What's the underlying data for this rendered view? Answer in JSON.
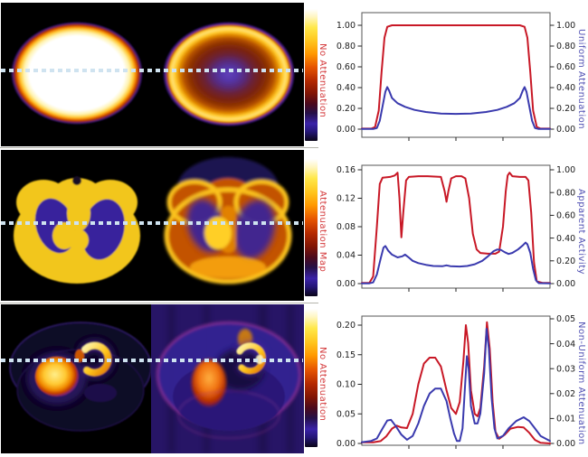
{
  "figure": {
    "description": "Attenuation effects in emission tomography: three phantom/patient slices (true vs attenuated) with line profiles along the dashed cyan line",
    "profile_line_color": "#cfe3f0",
    "colorbar_stops": [
      "#ffffff 0%",
      "#fff6c0 6%",
      "#ffe84a 14%",
      "#ffc61e 24%",
      "#ff9800 34%",
      "#e65500 44%",
      "#b52a00 54%",
      "#801505 64%",
      "#4a0a1e 72%",
      "#251047 79%",
      "#3a22a8 87%",
      "#241677 93%",
      "#0a0518 100%"
    ]
  },
  "chart_data": [
    {
      "type": "line",
      "title": "",
      "xlabel": "",
      "ylabel_left": "No Attenuation",
      "ylabel_right": "Uniform Attenuation",
      "ylabel_left_color": "#d43a3c",
      "ylabel_right_color": "#5252b4",
      "ylim_left": [
        0.0,
        1.0
      ],
      "ylim_right": [
        0.0,
        1.0
      ],
      "yticks_left": [
        "0.00",
        "0.20",
        "0.40",
        "0.60",
        "0.80",
        "1.00"
      ],
      "yticks_right": [
        "0.00",
        "0.20",
        "0.40",
        "0.60",
        "0.80",
        "1.00"
      ],
      "grid": false,
      "legend": "none",
      "series": [
        {
          "name": "No Attenuation",
          "axis": "left",
          "color": "#c81826",
          "points": [
            [
              0,
              0.005
            ],
            [
              0.05,
              0.005
            ],
            [
              0.07,
              0.02
            ],
            [
              0.09,
              0.18
            ],
            [
              0.105,
              0.55
            ],
            [
              0.12,
              0.88
            ],
            [
              0.135,
              0.985
            ],
            [
              0.16,
              1.0
            ],
            [
              0.3,
              1.0
            ],
            [
              0.5,
              1.0
            ],
            [
              0.7,
              1.0
            ],
            [
              0.84,
              1.0
            ],
            [
              0.865,
              0.985
            ],
            [
              0.88,
              0.88
            ],
            [
              0.895,
              0.55
            ],
            [
              0.91,
              0.18
            ],
            [
              0.93,
              0.02
            ],
            [
              0.95,
              0.005
            ],
            [
              1,
              0.005
            ]
          ]
        },
        {
          "name": "Uniform Attenuation",
          "axis": "right",
          "color": "#3a3aae",
          "points": [
            [
              0,
              0.002
            ],
            [
              0.06,
              0.002
            ],
            [
              0.08,
              0.01
            ],
            [
              0.095,
              0.08
            ],
            [
              0.11,
              0.22
            ],
            [
              0.125,
              0.36
            ],
            [
              0.135,
              0.405
            ],
            [
              0.145,
              0.37
            ],
            [
              0.16,
              0.3
            ],
            [
              0.19,
              0.25
            ],
            [
              0.23,
              0.215
            ],
            [
              0.28,
              0.185
            ],
            [
              0.34,
              0.165
            ],
            [
              0.42,
              0.15
            ],
            [
              0.5,
              0.147
            ],
            [
              0.58,
              0.15
            ],
            [
              0.66,
              0.165
            ],
            [
              0.72,
              0.185
            ],
            [
              0.77,
              0.215
            ],
            [
              0.81,
              0.25
            ],
            [
              0.84,
              0.3
            ],
            [
              0.855,
              0.37
            ],
            [
              0.865,
              0.405
            ],
            [
              0.875,
              0.36
            ],
            [
              0.89,
              0.22
            ],
            [
              0.905,
              0.08
            ],
            [
              0.92,
              0.01
            ],
            [
              0.94,
              0.002
            ],
            [
              1,
              0.002
            ]
          ]
        }
      ]
    },
    {
      "type": "line",
      "title": "",
      "xlabel": "",
      "ylabel_left": "Attenuation Map",
      "ylabel_right": "Apparent Activity",
      "ylabel_left_color": "#d43a3c",
      "ylabel_right_color": "#5252b4",
      "ylim_left": [
        0.0,
        0.16
      ],
      "ylim_right": [
        0.0,
        1.0
      ],
      "yticks_left": [
        "0.00",
        "0.04",
        "0.08",
        "0.12",
        "0.16"
      ],
      "yticks_right": [
        "0.00",
        "0.20",
        "0.40",
        "0.60",
        "0.80",
        "1.00"
      ],
      "grid": false,
      "legend": "none",
      "series": [
        {
          "name": "Attenuation Map",
          "axis": "left",
          "color": "#c81826",
          "points": [
            [
              0,
              0.001
            ],
            [
              0.04,
              0.001
            ],
            [
              0.06,
              0.01
            ],
            [
              0.08,
              0.08
            ],
            [
              0.095,
              0.14
            ],
            [
              0.11,
              0.149
            ],
            [
              0.15,
              0.15
            ],
            [
              0.175,
              0.152
            ],
            [
              0.19,
              0.156
            ],
            [
              0.2,
              0.12
            ],
            [
              0.21,
              0.065
            ],
            [
              0.22,
              0.1
            ],
            [
              0.235,
              0.145
            ],
            [
              0.25,
              0.15
            ],
            [
              0.3,
              0.151
            ],
            [
              0.35,
              0.151
            ],
            [
              0.42,
              0.15
            ],
            [
              0.44,
              0.13
            ],
            [
              0.45,
              0.115
            ],
            [
              0.46,
              0.13
            ],
            [
              0.475,
              0.148
            ],
            [
              0.5,
              0.151
            ],
            [
              0.53,
              0.151
            ],
            [
              0.55,
              0.148
            ],
            [
              0.57,
              0.12
            ],
            [
              0.59,
              0.07
            ],
            [
              0.61,
              0.048
            ],
            [
              0.63,
              0.043
            ],
            [
              0.67,
              0.042
            ],
            [
              0.71,
              0.042
            ],
            [
              0.73,
              0.045
            ],
            [
              0.75,
              0.08
            ],
            [
              0.765,
              0.13
            ],
            [
              0.775,
              0.152
            ],
            [
              0.785,
              0.156
            ],
            [
              0.8,
              0.151
            ],
            [
              0.84,
              0.15
            ],
            [
              0.87,
              0.15
            ],
            [
              0.885,
              0.145
            ],
            [
              0.9,
              0.1
            ],
            [
              0.915,
              0.03
            ],
            [
              0.93,
              0.003
            ],
            [
              0.96,
              0.001
            ],
            [
              1,
              0.001
            ]
          ]
        },
        {
          "name": "Apparent Activity",
          "axis": "right",
          "color": "#3a3aae",
          "points": [
            [
              0,
              0.002
            ],
            [
              0.04,
              0.002
            ],
            [
              0.06,
              0.01
            ],
            [
              0.08,
              0.08
            ],
            [
              0.1,
              0.22
            ],
            [
              0.115,
              0.315
            ],
            [
              0.125,
              0.33
            ],
            [
              0.14,
              0.29
            ],
            [
              0.16,
              0.255
            ],
            [
              0.19,
              0.23
            ],
            [
              0.215,
              0.24
            ],
            [
              0.23,
              0.255
            ],
            [
              0.245,
              0.235
            ],
            [
              0.27,
              0.2
            ],
            [
              0.3,
              0.18
            ],
            [
              0.34,
              0.165
            ],
            [
              0.38,
              0.155
            ],
            [
              0.43,
              0.153
            ],
            [
              0.45,
              0.16
            ],
            [
              0.47,
              0.153
            ],
            [
              0.52,
              0.15
            ],
            [
              0.56,
              0.155
            ],
            [
              0.6,
              0.17
            ],
            [
              0.64,
              0.2
            ],
            [
              0.67,
              0.24
            ],
            [
              0.7,
              0.285
            ],
            [
              0.72,
              0.3
            ],
            [
              0.74,
              0.295
            ],
            [
              0.76,
              0.275
            ],
            [
              0.78,
              0.26
            ],
            [
              0.8,
              0.27
            ],
            [
              0.83,
              0.3
            ],
            [
              0.855,
              0.335
            ],
            [
              0.87,
              0.36
            ],
            [
              0.88,
              0.345
            ],
            [
              0.895,
              0.27
            ],
            [
              0.91,
              0.13
            ],
            [
              0.925,
              0.03
            ],
            [
              0.94,
              0.004
            ],
            [
              1,
              0.002
            ]
          ]
        }
      ]
    },
    {
      "type": "line",
      "title": "",
      "xlabel": "",
      "ylabel_left": "No Attenuation",
      "ylabel_right": "Non-Uniform Attenuation",
      "ylabel_left_color": "#d43a3c",
      "ylabel_right_color": "#5252b4",
      "ylim_left": [
        0.0,
        0.2
      ],
      "ylim_right": [
        0.0,
        0.05
      ],
      "yticks_left": [
        "0.00",
        "0.05",
        "0.10",
        "0.15",
        "0.20"
      ],
      "yticks_right": [
        "0.00",
        "0.01",
        "0.02",
        "0.03",
        "0.04",
        "0.05"
      ],
      "grid": false,
      "legend": "none",
      "series": [
        {
          "name": "No Attenuation",
          "axis": "left",
          "color": "#c81826",
          "points": [
            [
              0,
              0.002
            ],
            [
              0.06,
              0.002
            ],
            [
              0.1,
              0.004
            ],
            [
              0.13,
              0.012
            ],
            [
              0.16,
              0.025
            ],
            [
              0.185,
              0.03
            ],
            [
              0.21,
              0.027
            ],
            [
              0.24,
              0.026
            ],
            [
              0.27,
              0.05
            ],
            [
              0.3,
              0.1
            ],
            [
              0.33,
              0.135
            ],
            [
              0.36,
              0.145
            ],
            [
              0.39,
              0.145
            ],
            [
              0.42,
              0.13
            ],
            [
              0.45,
              0.09
            ],
            [
              0.475,
              0.06
            ],
            [
              0.5,
              0.05
            ],
            [
              0.52,
              0.07
            ],
            [
              0.54,
              0.14
            ],
            [
              0.553,
              0.2
            ],
            [
              0.565,
              0.17
            ],
            [
              0.58,
              0.09
            ],
            [
              0.6,
              0.05
            ],
            [
              0.615,
              0.046
            ],
            [
              0.63,
              0.06
            ],
            [
              0.65,
              0.13
            ],
            [
              0.665,
              0.205
            ],
            [
              0.68,
              0.16
            ],
            [
              0.695,
              0.07
            ],
            [
              0.71,
              0.02
            ],
            [
              0.73,
              0.008
            ],
            [
              0.76,
              0.015
            ],
            [
              0.79,
              0.025
            ],
            [
              0.83,
              0.028
            ],
            [
              0.86,
              0.027
            ],
            [
              0.89,
              0.018
            ],
            [
              0.92,
              0.006
            ],
            [
              0.95,
              0.001
            ],
            [
              1,
              0.0
            ]
          ]
        },
        {
          "name": "Non-Uniform Attenuation",
          "axis": "right",
          "color": "#3a3aae",
          "points": [
            [
              0,
              0.0005
            ],
            [
              0.05,
              0.001
            ],
            [
              0.08,
              0.002
            ],
            [
              0.11,
              0.006
            ],
            [
              0.135,
              0.0092
            ],
            [
              0.155,
              0.0095
            ],
            [
              0.18,
              0.007
            ],
            [
              0.21,
              0.0035
            ],
            [
              0.24,
              0.0015
            ],
            [
              0.27,
              0.003
            ],
            [
              0.3,
              0.008
            ],
            [
              0.33,
              0.015
            ],
            [
              0.36,
              0.02
            ],
            [
              0.39,
              0.022
            ],
            [
              0.42,
              0.022
            ],
            [
              0.45,
              0.017
            ],
            [
              0.47,
              0.01
            ],
            [
              0.49,
              0.004
            ],
            [
              0.505,
              0.001
            ],
            [
              0.52,
              0.001
            ],
            [
              0.535,
              0.006
            ],
            [
              0.55,
              0.025
            ],
            [
              0.558,
              0.035
            ],
            [
              0.568,
              0.03
            ],
            [
              0.58,
              0.015
            ],
            [
              0.6,
              0.008
            ],
            [
              0.615,
              0.008
            ],
            [
              0.63,
              0.012
            ],
            [
              0.65,
              0.028
            ],
            [
              0.663,
              0.046
            ],
            [
              0.675,
              0.038
            ],
            [
              0.69,
              0.018
            ],
            [
              0.705,
              0.006
            ],
            [
              0.72,
              0.002
            ],
            [
              0.75,
              0.003
            ],
            [
              0.78,
              0.006
            ],
            [
              0.82,
              0.009
            ],
            [
              0.86,
              0.0105
            ],
            [
              0.89,
              0.009
            ],
            [
              0.92,
              0.006
            ],
            [
              0.95,
              0.003
            ],
            [
              1,
              0.001
            ]
          ]
        }
      ]
    }
  ]
}
